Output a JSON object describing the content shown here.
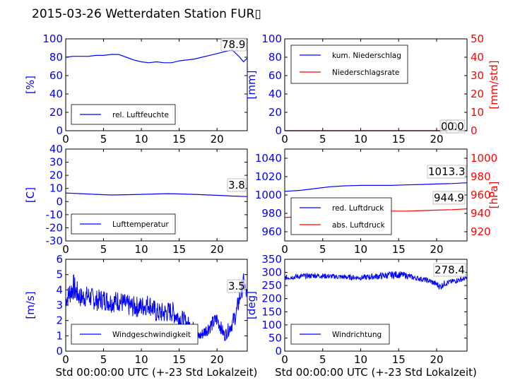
{
  "figure": {
    "title": "2015-03-26 Wetterdaten Station FUR▯"
  },
  "colors": {
    "blue": "#0000ff",
    "red": "#ff0000",
    "black": "#000000"
  },
  "chart_data": [
    {
      "type": "line",
      "ylabel": "[%]",
      "xlabel": "",
      "xlim": [
        0,
        24
      ],
      "ylim": [
        0,
        100
      ],
      "x_ticks": [
        0,
        5,
        10,
        15,
        20
      ],
      "y_ticks": [
        0,
        20,
        40,
        60,
        80,
        100
      ],
      "legend": "bottom-left",
      "annotation": "78.9",
      "series": [
        {
          "name": "rel. Luftfeuchte",
          "color": "#0000ff",
          "x": [
            0,
            1,
            2,
            3,
            4,
            5,
            6,
            7,
            8,
            9,
            10,
            11,
            12,
            13,
            14,
            15,
            16,
            17,
            18,
            19,
            20,
            21,
            22,
            23,
            23.5,
            24
          ],
          "y": [
            80,
            81,
            81,
            81,
            82,
            82,
            83,
            83,
            80,
            77,
            75,
            74,
            75,
            74,
            74,
            76,
            77,
            78,
            80,
            82,
            84,
            86,
            88,
            80,
            75,
            79
          ]
        }
      ]
    },
    {
      "type": "line",
      "ylabel": "[mm]",
      "ylabel_right": "[mm/std]",
      "xlabel": "",
      "xlim": [
        0,
        24
      ],
      "ylim": [
        0,
        100
      ],
      "ylim_right": [
        0,
        50
      ],
      "x_ticks": [
        0,
        5,
        10,
        15,
        20
      ],
      "y_ticks": [
        0,
        20,
        40,
        60,
        80,
        100
      ],
      "y_ticks_right": [
        0,
        10,
        20,
        30,
        40,
        50
      ],
      "legend": "top-left",
      "annotations": [
        "0.0",
        "0.0"
      ],
      "series": [
        {
          "name": "kum. Niederschlag",
          "color": "#0000ff",
          "axis": "left",
          "x": [
            0,
            24
          ],
          "y": [
            0,
            0
          ]
        },
        {
          "name": "Niederschlagsrate",
          "color": "#ff0000",
          "axis": "right",
          "x": [
            0,
            24
          ],
          "y": [
            0,
            0
          ]
        }
      ]
    },
    {
      "type": "line",
      "ylabel": "[C]",
      "xlabel": "",
      "xlim": [
        0,
        24
      ],
      "ylim": [
        -30,
        40
      ],
      "x_ticks": [
        0,
        5,
        10,
        15,
        20
      ],
      "y_ticks": [
        -30,
        -20,
        -10,
        0,
        10,
        20,
        30,
        40
      ],
      "legend": "bottom-left",
      "annotation": "3.8",
      "series": [
        {
          "name": "Lufttemperatur",
          "color": "#0000ff",
          "x": [
            0,
            2,
            4,
            6,
            8,
            10,
            12,
            13.5,
            15,
            17,
            19,
            21,
            22,
            24
          ],
          "y": [
            6.5,
            6,
            5.5,
            5,
            5.2,
            5.5,
            5.8,
            6,
            5.8,
            5.5,
            5,
            4.5,
            4.2,
            3.8
          ]
        }
      ]
    },
    {
      "type": "line",
      "ylabel": "",
      "ylabel_right": "[hPa]",
      "xlabel": "",
      "xlim": [
        0,
        24
      ],
      "ylim": [
        950,
        1050
      ],
      "ylim_right": [
        910,
        1010
      ],
      "x_ticks": [
        0,
        5,
        10,
        15,
        20
      ],
      "y_ticks": [
        960,
        980,
        1000,
        1020,
        1040
      ],
      "y_ticks_right": [
        920,
        940,
        960,
        980,
        1000
      ],
      "legend": "bottom-left",
      "annotations": [
        "1013.3",
        "944.9"
      ],
      "series": [
        {
          "name": "red. Luftdruck",
          "color": "#0000ff",
          "axis": "left",
          "x": [
            0,
            2,
            4,
            6,
            8,
            10,
            12,
            14,
            16,
            18,
            20,
            22,
            24
          ],
          "y": [
            1004,
            1005,
            1007,
            1009,
            1010,
            1010.5,
            1010.5,
            1010.5,
            1011,
            1011.5,
            1012,
            1012.5,
            1013.3
          ]
        },
        {
          "name": "abs. Luftdruck",
          "color": "#ff0000",
          "axis": "right",
          "x": [
            0,
            2,
            4,
            6,
            8,
            10,
            12,
            14,
            16,
            18,
            20,
            22,
            24
          ],
          "y": [
            935.5,
            936.5,
            938,
            939.5,
            940.5,
            941.5,
            942,
            942.5,
            942.5,
            943,
            943.5,
            944,
            944.9
          ]
        }
      ]
    },
    {
      "type": "line",
      "ylabel": "[m/s]",
      "xlabel": "Std 00:00:00 UTC (+-23 Std Lokalzeit)",
      "xlim": [
        0,
        24
      ],
      "ylim": [
        0,
        6
      ],
      "x_ticks": [
        0,
        5,
        10,
        15,
        20
      ],
      "y_ticks": [
        0,
        1,
        2,
        3,
        4,
        5,
        6
      ],
      "legend": "bottom-left",
      "annotation": "3.5",
      "series": [
        {
          "name": "Windgeschwindigkeit",
          "color": "#0000ff",
          "x": [
            0,
            0.5,
            1,
            1.5,
            2,
            3,
            4,
            5,
            6,
            7,
            8,
            9,
            10,
            11,
            12,
            13,
            14,
            15,
            16,
            17,
            17.5,
            18,
            19,
            20,
            21,
            22,
            22.5,
            23,
            23.5,
            24
          ],
          "y": [
            3.3,
            3.8,
            4.2,
            3.8,
            3.5,
            3.6,
            3.3,
            3.4,
            3.2,
            3.3,
            3.0,
            2.9,
            2.9,
            3.1,
            2.5,
            2.5,
            2.6,
            2.2,
            1.8,
            1.4,
            0.9,
            1.1,
            1.6,
            2.1,
            1.0,
            1.8,
            2.4,
            3.5,
            4.5,
            3.5
          ],
          "amp": [
            0.5,
            0.8,
            0.9,
            0.8,
            0.7,
            0.7,
            0.7,
            0.7,
            0.7,
            0.7,
            0.7,
            0.7,
            0.7,
            0.7,
            0.7,
            0.7,
            0.7,
            0.7,
            0.6,
            0.5,
            0.4,
            0.4,
            0.5,
            0.5,
            0.4,
            0.5,
            0.6,
            0.7,
            0.6,
            0.6
          ]
        }
      ]
    },
    {
      "type": "line",
      "ylabel": "[deg]",
      "xlabel": "Std 00:00:00 UTC (+-23 Std Lokalzeit)",
      "xlim": [
        0,
        24
      ],
      "ylim": [
        0,
        350
      ],
      "x_ticks": [
        0,
        5,
        10,
        15,
        20
      ],
      "y_ticks": [
        0,
        50,
        100,
        150,
        200,
        250,
        300,
        350
      ],
      "legend": "bottom-left",
      "annotation": "278.4",
      "series": [
        {
          "name": "Windrichtung",
          "color": "#0000ff",
          "x": [
            0,
            2,
            4,
            6,
            8,
            10,
            12,
            14,
            15,
            16,
            17,
            18,
            19,
            20,
            20.5,
            21,
            22,
            23,
            24
          ],
          "y": [
            280,
            285,
            288,
            285,
            282,
            280,
            285,
            290,
            292,
            288,
            280,
            275,
            268,
            255,
            245,
            258,
            265,
            272,
            278
          ],
          "amp": [
            10,
            10,
            10,
            10,
            10,
            10,
            12,
            14,
            14,
            12,
            10,
            10,
            10,
            12,
            14,
            12,
            10,
            10,
            8
          ]
        }
      ]
    }
  ]
}
